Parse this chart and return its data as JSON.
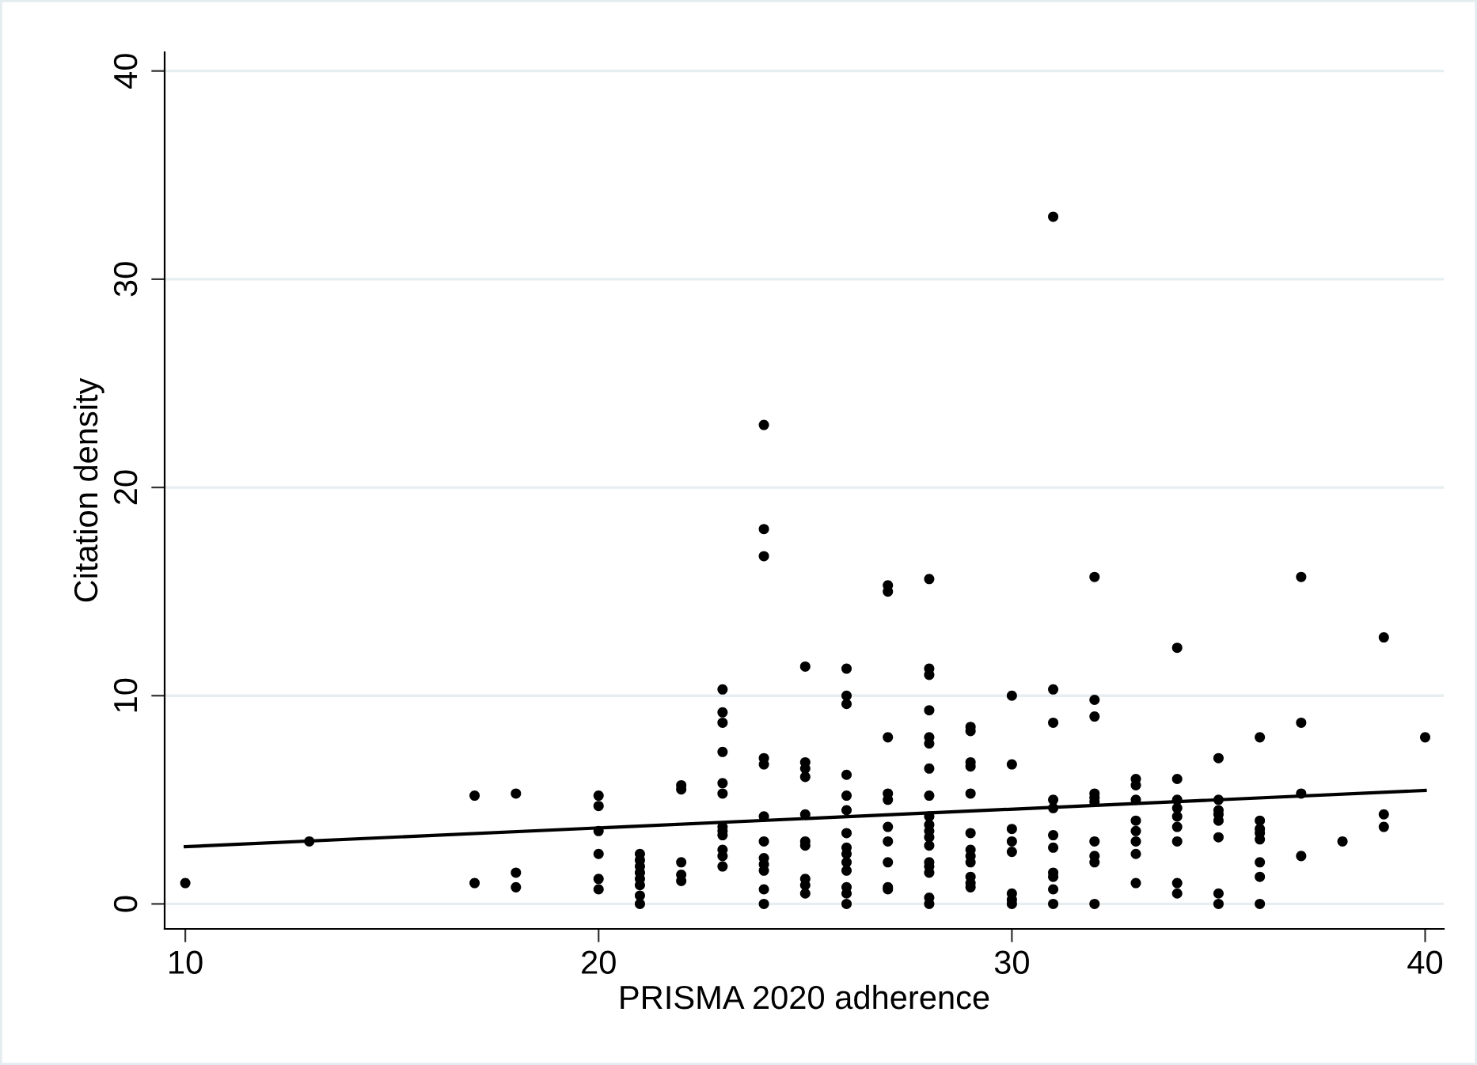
{
  "chart_data": {
    "type": "scatter",
    "xlabel": "PRISMA 2020 adherence",
    "ylabel": "Citation density",
    "xlim": [
      9.5,
      40.45
    ],
    "ylim": [
      -1.2,
      40.9
    ],
    "xticks": [
      10,
      20,
      30,
      40
    ],
    "yticks": [
      0,
      10,
      20,
      30,
      40
    ],
    "grid": "y",
    "series": [
      {
        "marker": "circle",
        "color": "#000000",
        "x": [
          10,
          13,
          17,
          17,
          18,
          18,
          18,
          20,
          20,
          20,
          20,
          20,
          20,
          21,
          21,
          21,
          21,
          21,
          21,
          21,
          21,
          22,
          22,
          22,
          22,
          22,
          23,
          23,
          23,
          23,
          23,
          23,
          23,
          23,
          23,
          23,
          23,
          23,
          24,
          24,
          24,
          24,
          24,
          24,
          24,
          24,
          24,
          24,
          24,
          24,
          25,
          25,
          25,
          25,
          25,
          25,
          25,
          25,
          25,
          25,
          26,
          26,
          26,
          26,
          26,
          26,
          26,
          26,
          26,
          26,
          26,
          26,
          26,
          26,
          27,
          27,
          27,
          27,
          27,
          27,
          27,
          27,
          27,
          27,
          28,
          28,
          28,
          28,
          28,
          28,
          28,
          28,
          28,
          28,
          28,
          28,
          28,
          28,
          28,
          28,
          28,
          28,
          29,
          29,
          29,
          29,
          29,
          29,
          29,
          29,
          29,
          29,
          29,
          29,
          30,
          30,
          30,
          30,
          30,
          30,
          30,
          30,
          31,
          31,
          31,
          31,
          31,
          31,
          31,
          31,
          31,
          31,
          31,
          32,
          32,
          32,
          32,
          32,
          32,
          32,
          32,
          32,
          32,
          33,
          33,
          33,
          33,
          33,
          33,
          33,
          33,
          34,
          34,
          34,
          34,
          34,
          34,
          34,
          34,
          34,
          35,
          35,
          35,
          35,
          35,
          35,
          35,
          35,
          36,
          36,
          36,
          36,
          36,
          36,
          36,
          36,
          37,
          37,
          37,
          37,
          38,
          39,
          39,
          39,
          40
        ],
        "values": [
          1,
          3,
          5.2,
          1,
          5.3,
          1.5,
          0.8,
          5.2,
          4.7,
          3.5,
          2.4,
          1.2,
          0.7,
          2.4,
          2.1,
          1.8,
          1.5,
          1.2,
          0.9,
          0.4,
          0,
          5.7,
          5.5,
          2,
          1.4,
          1.1,
          10.3,
          9.2,
          8.7,
          7.3,
          5.8,
          5.3,
          3.7,
          3.5,
          3.3,
          2.6,
          2.3,
          1.8,
          23,
          18,
          16.7,
          7,
          6.7,
          4.2,
          3,
          2.2,
          1.9,
          1.6,
          0.7,
          0,
          11.4,
          6.8,
          6.5,
          6.1,
          4.3,
          3,
          2.8,
          1.2,
          0.9,
          0.5,
          11.3,
          10,
          9.6,
          6.2,
          5.2,
          4.5,
          3.4,
          2.7,
          2.4,
          2,
          1.6,
          0.8,
          0.5,
          0,
          15.3,
          15,
          8,
          5.3,
          5,
          3.7,
          3,
          2,
          0.8,
          0.7,
          15.6,
          11.3,
          11,
          9.3,
          8,
          7.7,
          6.5,
          5.2,
          4.2,
          3.8,
          3.5,
          3.2,
          2.8,
          2,
          1.8,
          1.5,
          0.3,
          0,
          8.5,
          8.3,
          6.8,
          6.6,
          5.3,
          3.4,
          2.6,
          2.3,
          2,
          1.3,
          1,
          0.8,
          10,
          6.7,
          3.6,
          3,
          2.5,
          0.5,
          0.2,
          0,
          33,
          10.3,
          8.7,
          5,
          4.6,
          3.3,
          2.7,
          1.5,
          1.3,
          0.7,
          0,
          15.7,
          9.8,
          9,
          5.3,
          5.1,
          4.9,
          3,
          2.3,
          2,
          0,
          6,
          5.7,
          5,
          4,
          3.5,
          3,
          2.4,
          1,
          12.3,
          6,
          5,
          4.6,
          4.2,
          3.7,
          3,
          1,
          0.5,
          7,
          5,
          4.5,
          4.3,
          4,
          3.2,
          0.5,
          0,
          8,
          4,
          3.6,
          3.4,
          3.1,
          2,
          1.3,
          0,
          15.7,
          8.7,
          5.3,
          2.3,
          3,
          12.8,
          4.3,
          3.7,
          8
        ]
      },
      {
        "type": "line",
        "marker": "none",
        "color": "#000000",
        "x": [
          10,
          40
        ],
        "values": [
          2.75,
          5.45
        ]
      }
    ]
  }
}
